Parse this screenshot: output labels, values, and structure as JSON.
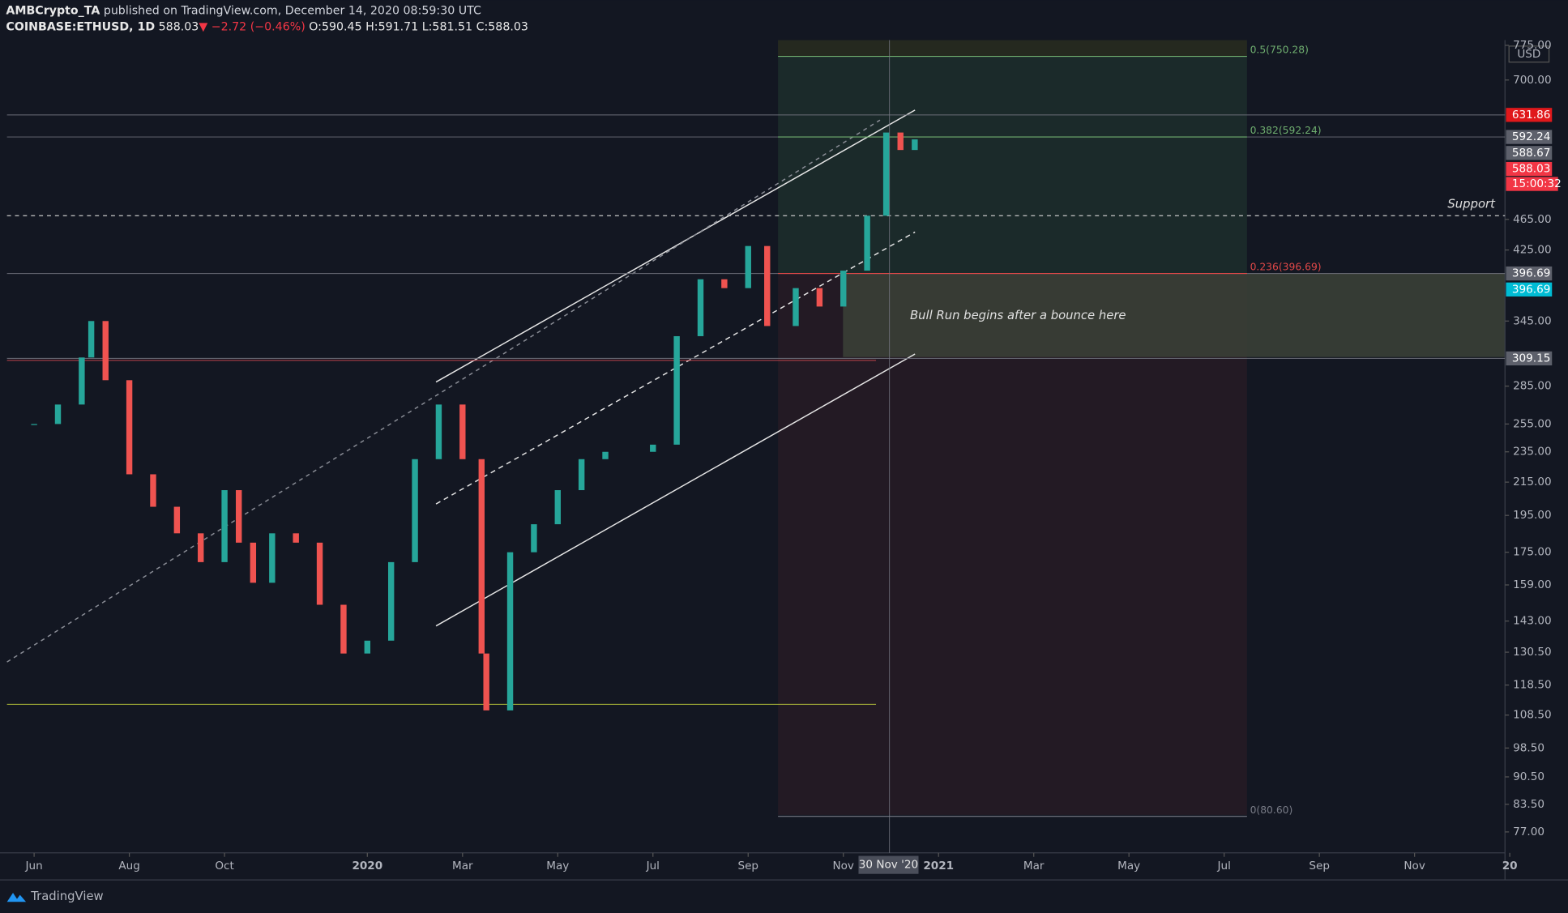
{
  "header": {
    "author": "AMBCrypto_TA",
    "published": "published on TradingView.com, December 14, 2020 08:59:30 UTC",
    "symbol": "COINBASE:ETHUSD, 1D",
    "last": "588.03",
    "change": "▼ −2.72 (−0.46%)",
    "open": "O:590.45",
    "high": "H:591.71",
    "low": "L:581.51",
    "close": "C:588.03"
  },
  "footer": {
    "brand": "TradingView"
  },
  "chart_data": {
    "type": "candlestick",
    "log_scale": true,
    "grid": false,
    "currency": "USD",
    "up_color": "#26a69a",
    "down_color": "#ef5350",
    "x": [
      0,
      0.5,
      1,
      1.2,
      1.5,
      2,
      2.5,
      3,
      3.5,
      4,
      4.3,
      4.6,
      5,
      5.5,
      6,
      6.5,
      7,
      7.5,
      8,
      8.5,
      9,
      9.4,
      9.5,
      10,
      10.5,
      11,
      11.5,
      12,
      13,
      13.5,
      14,
      14.5,
      15,
      15.4,
      16,
      16.5,
      17,
      17.5,
      17.9,
      18.2,
      18.5
    ],
    "values": [
      255,
      270,
      310,
      345,
      290,
      220,
      200,
      185,
      170,
      210,
      180,
      160,
      185,
      180,
      150,
      130,
      135,
      170,
      230,
      270,
      230,
      130,
      110,
      175,
      190,
      210,
      230,
      235,
      240,
      330,
      390,
      380,
      430,
      340,
      380,
      360,
      400,
      470,
      600,
      570,
      588.03
    ],
    "xlim": [
      -0.57,
      30.9
    ],
    "xticks": [
      {
        "value": 0,
        "label": "Jun"
      },
      {
        "value": 2,
        "label": "Aug"
      },
      {
        "value": 4,
        "label": "Oct"
      },
      {
        "value": 7,
        "label": "2020"
      },
      {
        "value": 9,
        "label": "Mar"
      },
      {
        "value": 11,
        "label": "May"
      },
      {
        "value": 13,
        "label": "Jul"
      },
      {
        "value": 15,
        "label": "Sep"
      },
      {
        "value": 17,
        "label": "Nov"
      },
      {
        "value": 19,
        "label": "2021"
      },
      {
        "value": 21,
        "label": "Mar"
      },
      {
        "value": 23,
        "label": "May"
      },
      {
        "value": 25,
        "label": "Jul"
      },
      {
        "value": 27,
        "label": "Sep"
      },
      {
        "value": 29,
        "label": "Nov"
      },
      {
        "value": 31,
        "label": "20"
      }
    ],
    "cursor_date": {
      "value": 17.97,
      "label": "30 Nov '20"
    },
    "ylim": [
      72.4,
      787
    ],
    "yticks": [
      {
        "value": 775,
        "label": "775.00"
      },
      {
        "value": 700,
        "label": "700.00"
      },
      {
        "value": 465,
        "label": "465.00"
      },
      {
        "value": 425,
        "label": "425.00"
      },
      {
        "value": 345,
        "label": "345.00"
      },
      {
        "value": 285,
        "label": "285.00"
      },
      {
        "value": 255,
        "label": "255.00"
      },
      {
        "value": 235,
        "label": "235.00"
      },
      {
        "value": 215,
        "label": "215.00"
      },
      {
        "value": 195,
        "label": "195.00"
      },
      {
        "value": 175,
        "label": "175.00"
      },
      {
        "value": 159,
        "label": "159.00"
      },
      {
        "value": 143,
        "label": "143.00"
      },
      {
        "value": 130.5,
        "label": "130.50"
      },
      {
        "value": 118.5,
        "label": "118.50"
      },
      {
        "value": 108.5,
        "label": "108.50"
      },
      {
        "value": 98.5,
        "label": "98.50"
      },
      {
        "value": 90.5,
        "label": "90.50"
      },
      {
        "value": 83.5,
        "label": "83.50"
      },
      {
        "value": 77,
        "label": "77.00"
      }
    ],
    "price_lines": [
      631.86,
      592.24,
      396.69,
      309.15
    ],
    "support": {
      "value": 470,
      "label": "Support"
    },
    "low_line": 112,
    "fib_levels": [
      {
        "value": 750.28,
        "label": "0.5(750.28)",
        "color": "#6fae6f"
      },
      {
        "value": 592.24,
        "label": "0.382(592.24)",
        "color": "#6fae6f"
      },
      {
        "value": 396.69,
        "label": "0.236(396.69)",
        "color": "#e04848"
      },
      {
        "value": 80.6,
        "label": "0(80.60)",
        "color": "#787b86"
      }
    ],
    "price_tags": [
      {
        "value": 631.86,
        "color": "#e0181b"
      },
      {
        "value": 592.24,
        "color": "#5d606b"
      },
      {
        "value": 588.67,
        "color": "#5d606b"
      },
      {
        "value": 588.03,
        "color": "#f23645"
      },
      {
        "value": 396.69,
        "color": "#5d606b"
      },
      {
        "value": 396.69,
        "color": "#00bcd4"
      },
      {
        "value": 309.15,
        "color": "#5d606b"
      }
    ],
    "countdown": "15:00:32",
    "annotation": "Bull Run begins after a bounce here"
  }
}
